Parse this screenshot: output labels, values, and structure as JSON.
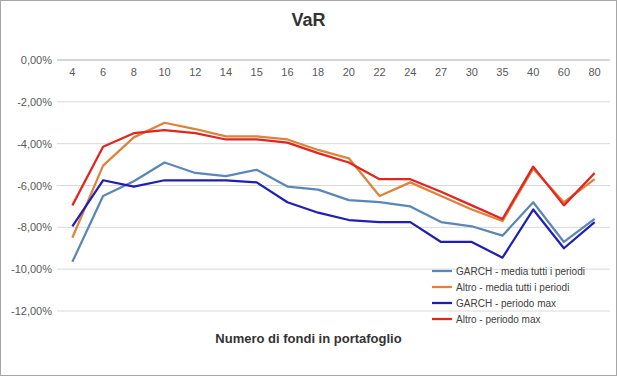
{
  "chart_data": {
    "type": "line",
    "title": "VaR",
    "x_label": "Numero di fondi in portafoglio",
    "categories": [
      "4",
      "6",
      "8",
      "10",
      "12",
      "14",
      "15",
      "16",
      "18",
      "20",
      "22",
      "24",
      "27",
      "30",
      "35",
      "40",
      "60",
      "80"
    ],
    "series": [
      {
        "name": "GARCH - media tutti i periodi",
        "color": "#5b87b6",
        "values": [
          -9.65,
          -6.5,
          -5.8,
          -4.9,
          -5.4,
          -5.55,
          -5.25,
          -6.05,
          -6.2,
          -6.7,
          -6.8,
          -7.0,
          -7.75,
          -7.95,
          -8.4,
          -6.8,
          -8.7,
          -7.6
        ]
      },
      {
        "name": "Altro - media tutti i periodi",
        "color": "#e0823a",
        "values": [
          -8.5,
          -5.05,
          -3.7,
          -3.0,
          -3.3,
          -3.65,
          -3.65,
          -3.8,
          -4.3,
          -4.7,
          -6.5,
          -5.85,
          -6.5,
          -7.15,
          -7.7,
          -5.2,
          -6.8,
          -5.7
        ]
      },
      {
        "name": "GARCH - periodo max",
        "color": "#1f1fb4",
        "values": [
          -7.95,
          -5.75,
          -6.05,
          -5.75,
          -5.75,
          -5.75,
          -5.85,
          -6.8,
          -7.3,
          -7.65,
          -7.75,
          -7.75,
          -8.7,
          -8.7,
          -9.45,
          -7.15,
          -9.0,
          -7.75
        ]
      },
      {
        "name": "Altro - periodo max",
        "color": "#e0261f",
        "values": [
          -6.95,
          -4.15,
          -3.5,
          -3.35,
          -3.5,
          -3.8,
          -3.8,
          -3.95,
          -4.45,
          -4.9,
          -5.7,
          -5.7,
          -6.3,
          -6.95,
          -7.6,
          -5.1,
          -6.95,
          -5.4
        ]
      }
    ],
    "ylim": [
      -12,
      0
    ],
    "yticks": [
      {
        "value": 0,
        "label": "0,00%"
      },
      {
        "value": -2,
        "label": "-2,00%"
      },
      {
        "value": -4,
        "label": "-4,00%"
      },
      {
        "value": -6,
        "label": "-6,00%"
      },
      {
        "value": -8,
        "label": "-8,00%"
      },
      {
        "value": -10,
        "label": "-10,00%"
      },
      {
        "value": -12,
        "label": "-12,00%"
      }
    ],
    "grid": true,
    "legend": "bottom-right"
  }
}
